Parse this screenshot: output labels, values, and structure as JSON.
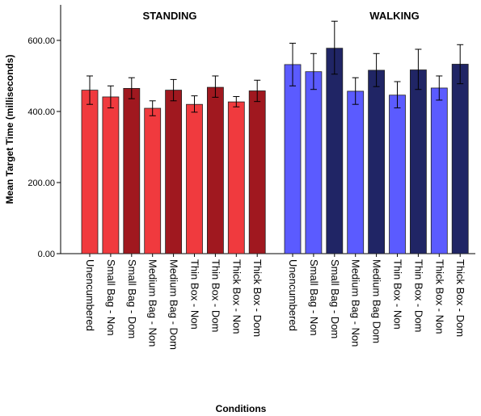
{
  "chart_data": {
    "type": "bar",
    "xlabel": "Conditions",
    "ylabel": "Mean Target Time (milliseconds)",
    "ylim": [
      0,
      700
    ],
    "yticks": [
      "0.00",
      "200.00",
      "400.00",
      "600.00"
    ],
    "ytick_values": [
      0,
      200,
      400,
      600
    ],
    "error_bars": true,
    "grid": false,
    "groups": [
      {
        "title": "STANDING",
        "categories": [
          "Unencumbered",
          "Small Bag - Non",
          "Small Bag - Dom",
          "Medium Bag - Non",
          "Medium Bag - Dom",
          "Thin Box - Non",
          "Thin Box - Dom",
          "Thick Box - Non",
          "Thick Box - Dom"
        ],
        "values": [
          460,
          441,
          465,
          409,
          460,
          420,
          468,
          427,
          458
        ],
        "error_low": [
          420,
          410,
          436,
          388,
          430,
          398,
          440,
          413,
          428
        ],
        "error_high": [
          500,
          472,
          495,
          430,
          490,
          444,
          500,
          442,
          488
        ],
        "colors": [
          "#f03a3e",
          "#f03a3e",
          "#a0181f",
          "#f03a3e",
          "#a0181f",
          "#f03a3e",
          "#a0181f",
          "#f03a3e",
          "#a0181f"
        ]
      },
      {
        "title": "WALKING",
        "categories": [
          "Unencumbered",
          "Small Bag - Non",
          "Small Bag - Dom",
          "Medium Bag - Non",
          "Medium Bag Dom",
          "Thin Box - Non",
          "Thin Box - Dom",
          "Thick Box - Non",
          "Thick Box - Dom"
        ],
        "values": [
          532,
          512,
          578,
          457,
          516,
          446,
          517,
          466,
          533
        ],
        "error_low": [
          472,
          462,
          505,
          420,
          470,
          410,
          462,
          432,
          478
        ],
        "error_high": [
          592,
          563,
          654,
          495,
          563,
          484,
          575,
          500,
          588
        ],
        "colors": [
          "#5b5bff",
          "#5b5bff",
          "#202565",
          "#5b5bff",
          "#202565",
          "#5b5bff",
          "#202565",
          "#5b5bff",
          "#202565"
        ]
      }
    ]
  }
}
